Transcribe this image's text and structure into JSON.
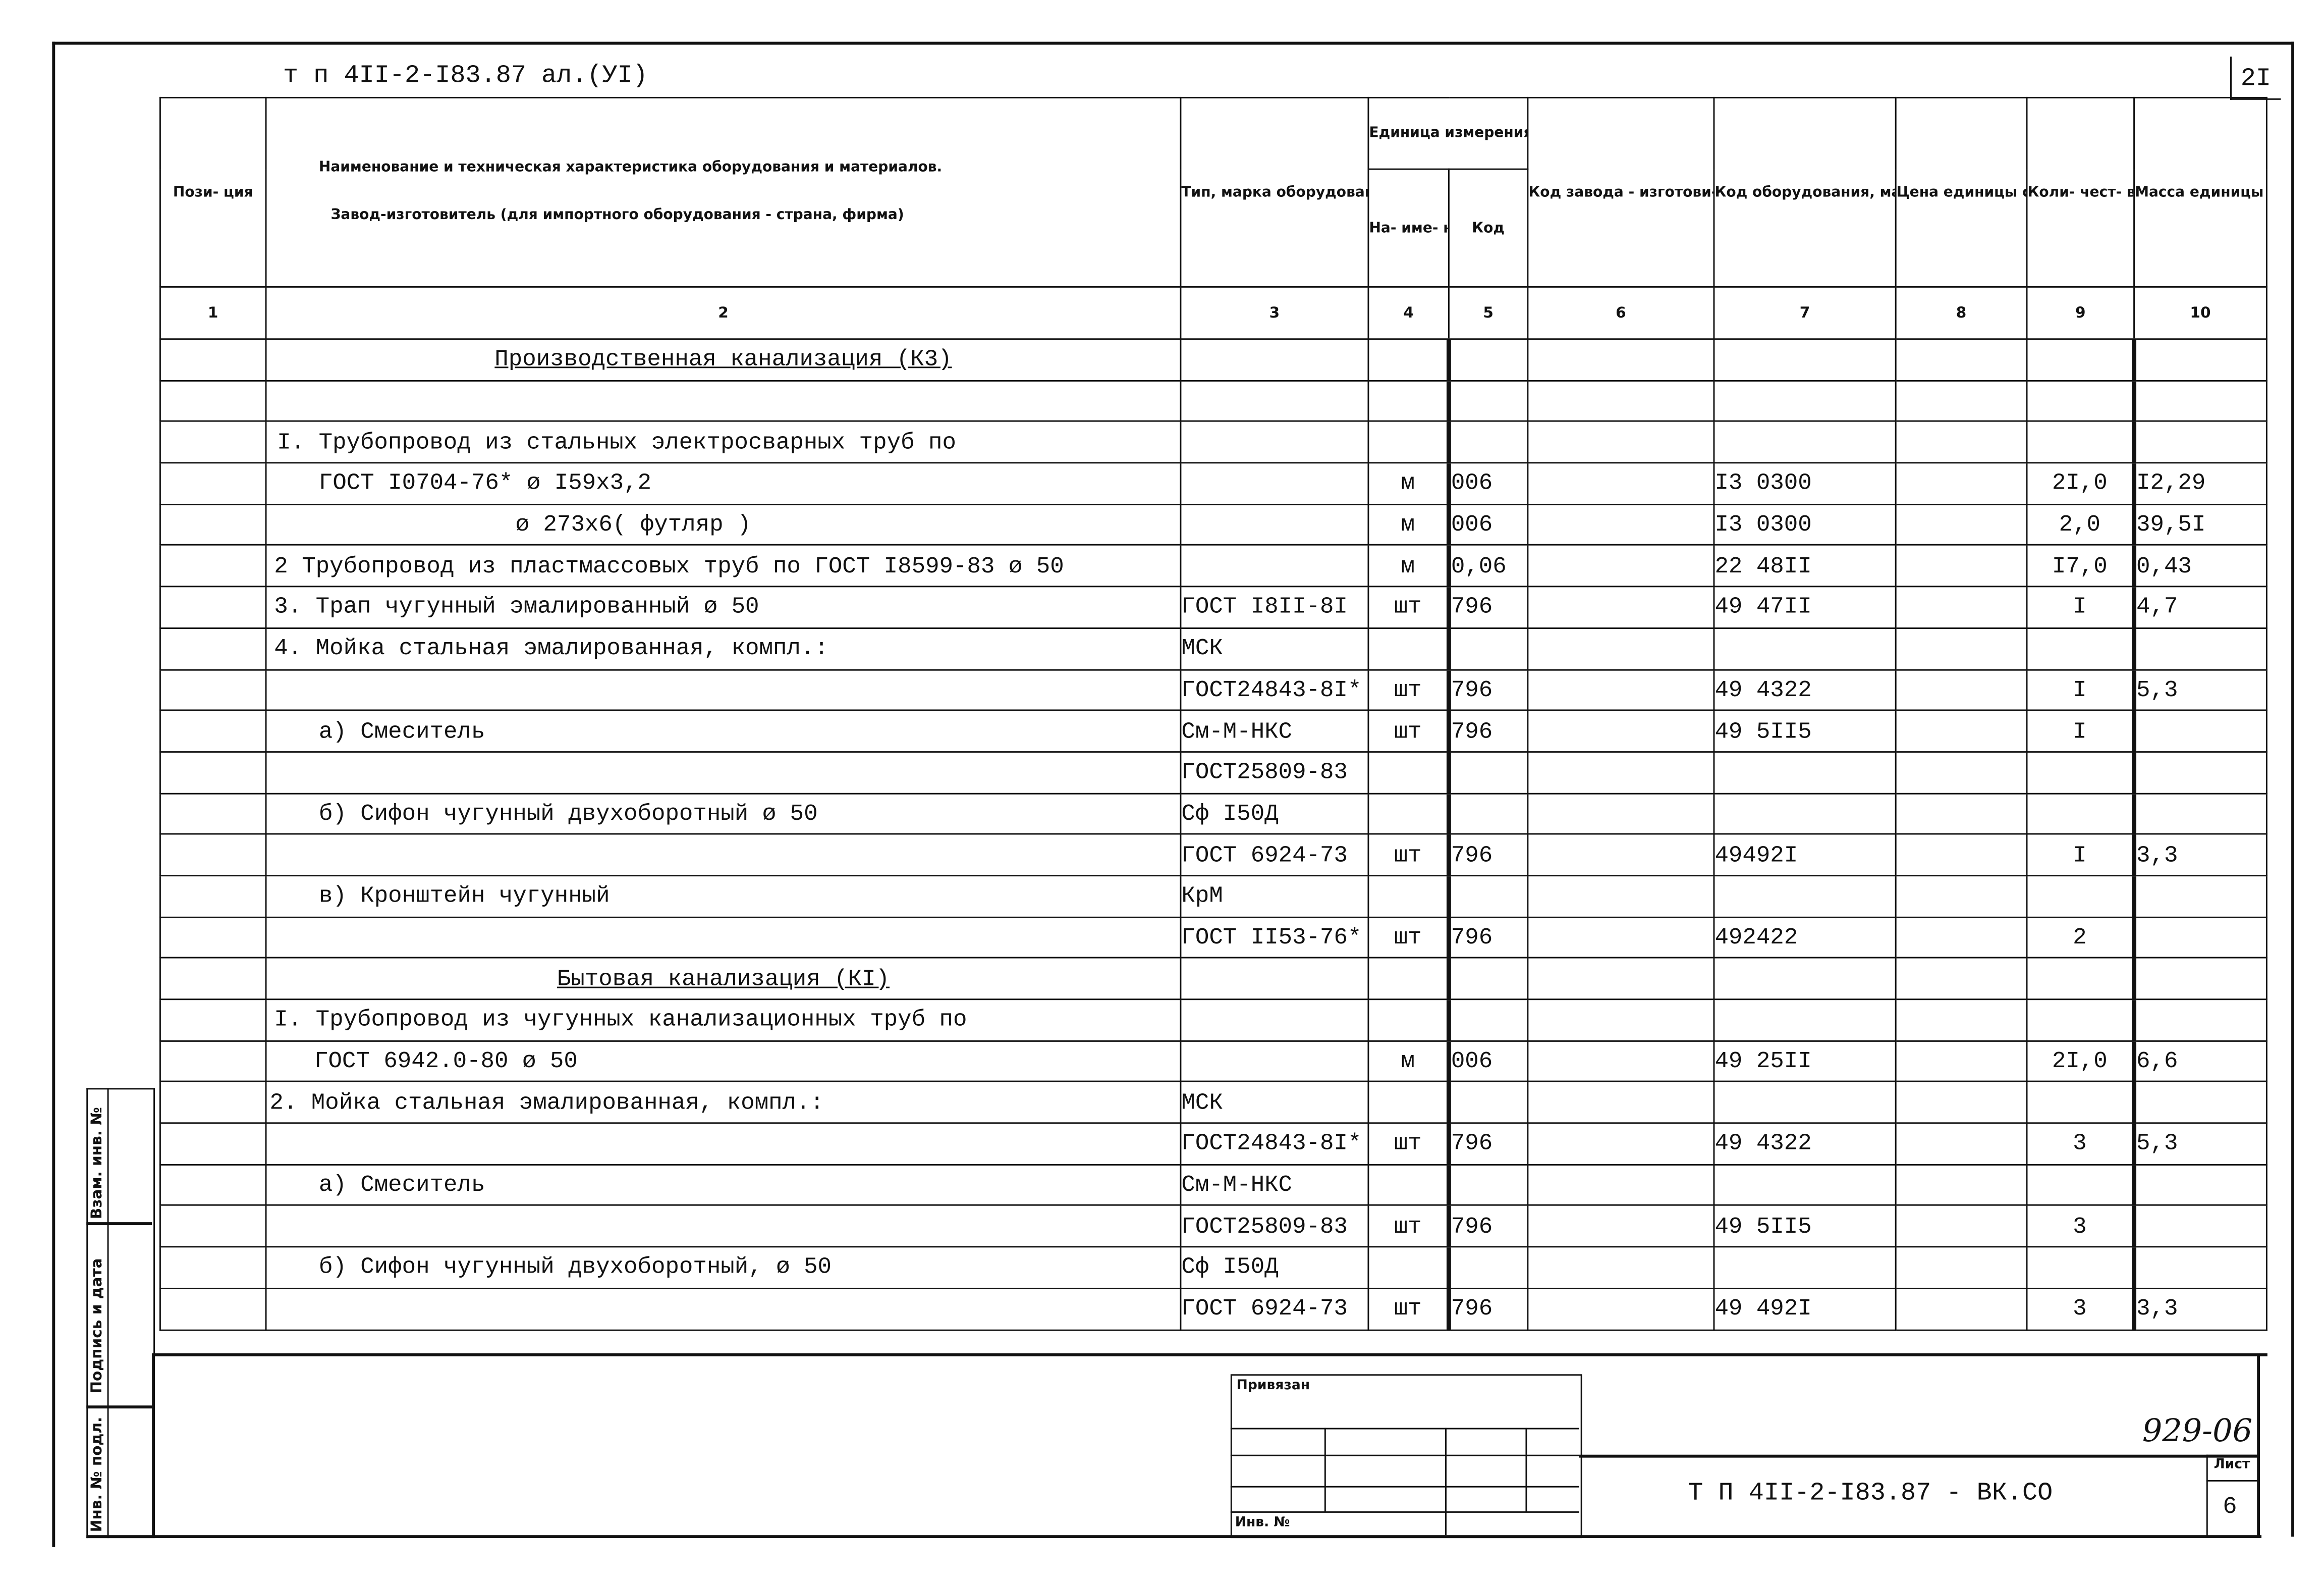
{
  "header_line": "т п  4II-2-I83.87  ал.(УI)",
  "page_number_top": "2I",
  "columns": {
    "pos": "Пози- ция",
    "name_line1": "Наименование и техническая характеристика  оборудования и материалов.",
    "name_line2": "Завод-изготовитель  (для импортного оборудования -  страна, фирма)",
    "type": "Тип, марка оборудования. Обозначение до- кумента и номер опросного листа",
    "unit_group": "Единица измерения",
    "unit_name": "На- име- нова- ние",
    "unit_code": "Код",
    "plant_code": "Код завода - изготови- теля",
    "equip_code": "Код оборудования, материала",
    "price": "Цена единицы оборудо- вания , тыс. руб.",
    "qty": "Коли- чест- во",
    "mass": "Масса единицы оборудо- вания, кг"
  },
  "column_numbers": [
    "1",
    "2",
    "3",
    "4",
    "5",
    "6",
    "7",
    "8",
    "9",
    "10"
  ],
  "rows": [
    {
      "section": true,
      "c": [
        "",
        "Производственная канализация  (К3)",
        "",
        "",
        "",
        "",
        "",
        "",
        "",
        ""
      ]
    },
    {
      "c": [
        "",
        "",
        "",
        "",
        "",
        "",
        "",
        "",
        "",
        ""
      ]
    },
    {
      "c": [
        "",
        "I. Трубопровод из стальных электросварных труб по",
        "",
        "",
        "",
        "",
        "",
        "",
        "",
        ""
      ]
    },
    {
      "c": [
        "",
        "ГОСТ I0704-76* ø I59х3,2",
        "",
        "м",
        "006",
        "",
        "I3 0300",
        "",
        "2I,0",
        "I2,29"
      ]
    },
    {
      "c": [
        "",
        "ø 273х6( футляр )",
        "",
        "м",
        "006",
        "",
        "I3 0300",
        "",
        "2,0",
        "39,5I"
      ]
    },
    {
      "c": [
        "",
        "2 Трубопровод из пластмассовых труб по ГОСТ I8599-83 ø 50",
        "",
        "м",
        "0,06",
        "",
        "22 48II",
        "",
        "I7,0",
        "0,43"
      ]
    },
    {
      "c": [
        "",
        "3. Трап чугунный эмалированный ø 50",
        "ГОСТ I8II-8I",
        "шт",
        "796",
        "",
        "49 47II",
        "",
        "I",
        "4,7"
      ]
    },
    {
      "c": [
        "",
        "4. Мойка стальная эмалированная, компл.:",
        "МСК",
        "",
        "",
        "",
        "",
        "",
        "",
        ""
      ]
    },
    {
      "c": [
        "",
        "",
        "ГОСТ24843-8I*",
        "шт",
        "796",
        "",
        "49 4322",
        "",
        "I",
        "5,3"
      ]
    },
    {
      "c": [
        "",
        "а) Смеситель",
        "См-М-НКС",
        "шт",
        "796",
        "",
        "49 5II5",
        "",
        "I",
        ""
      ]
    },
    {
      "c": [
        "",
        "",
        "ГОСТ25809-83",
        "",
        "",
        "",
        "",
        "",
        "",
        ""
      ]
    },
    {
      "c": [
        "",
        "б) Сифон чугунный двухоборотный ø 50",
        "Сф I50Д",
        "",
        "",
        "",
        "",
        "",
        "",
        ""
      ]
    },
    {
      "c": [
        "",
        "",
        "ГОСТ 6924-73",
        "шт",
        "796",
        "",
        "49492I",
        "",
        "I",
        "3,3"
      ]
    },
    {
      "c": [
        "",
        "в) Кронштейн чугунный",
        "КрМ",
        "",
        "",
        "",
        "",
        "",
        "",
        ""
      ]
    },
    {
      "c": [
        "",
        "",
        "ГОСТ II53-76*",
        "шт",
        "796",
        "",
        "492422",
        "",
        "2",
        ""
      ]
    },
    {
      "section": true,
      "c": [
        "",
        "Бытовая канализация   (КI)",
        "",
        "",
        "",
        "",
        "",
        "",
        "",
        ""
      ]
    },
    {
      "c": [
        "",
        "I. Трубопровод из чугунных канализационных труб по",
        "",
        "",
        "",
        "",
        "",
        "",
        "",
        ""
      ]
    },
    {
      "c": [
        "",
        "ГОСТ 6942.0-80 ø 50",
        "",
        "м",
        "006",
        "",
        "49 25II",
        "",
        "2I,0",
        "6,6"
      ]
    },
    {
      "c": [
        "",
        "2. Мойка стальная эмалированная, компл.:",
        "МСК",
        "",
        "",
        "",
        "",
        "",
        "",
        ""
      ]
    },
    {
      "c": [
        "",
        "",
        "ГОСТ24843-8I*",
        "шт",
        "796",
        "",
        "49 4322",
        "",
        "3",
        "5,3"
      ]
    },
    {
      "c": [
        "",
        "а) Смеситель",
        "См-М-НКС",
        "",
        "",
        "",
        "",
        "",
        "",
        ""
      ]
    },
    {
      "c": [
        "",
        "",
        "ГОСТ25809-83",
        "шт",
        "796",
        "",
        "49 5II5",
        "",
        "3",
        ""
      ]
    },
    {
      "c": [
        "",
        "б) Сифон чугунный двухоборотный, ø 50",
        "Сф I50Д",
        "",
        "",
        "",
        "",
        "",
        "",
        ""
      ]
    },
    {
      "c": [
        "",
        "",
        "ГОСТ 6924-73",
        "шт",
        "796",
        "",
        "49 492I",
        "",
        "3",
        "3,3"
      ]
    }
  ],
  "side_stamp": {
    "label_top": "Взам. инв. №",
    "label_mid": "Подпись и дата",
    "label_bottom": "Инв. № подл."
  },
  "title_block": {
    "attached_label": "Привязан",
    "inv_label": "Инв. №",
    "handwritten_number": "929-06",
    "document_code": "Т П  4II-2-I83.87  - ВК.СО",
    "sheet_label": "Лист",
    "sheet_number": "6"
  }
}
